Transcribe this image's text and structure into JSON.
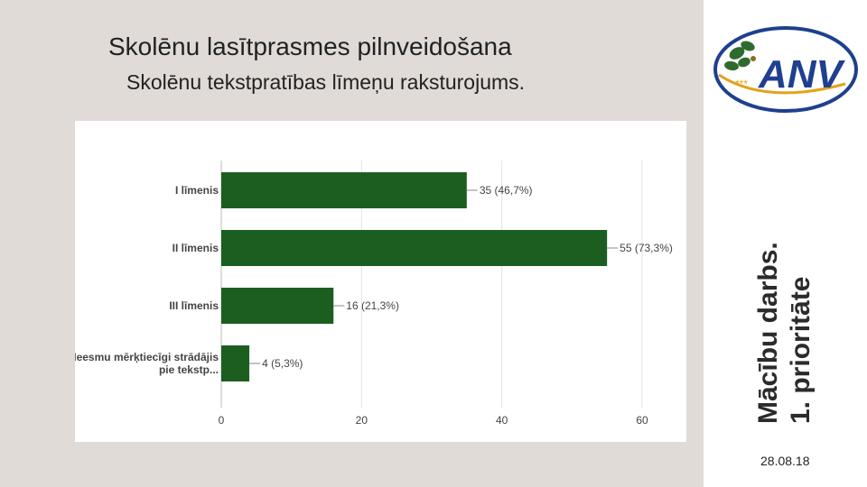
{
  "slide": {
    "title": "Skolēnu lasītprasmes pilnveidošana",
    "subtitle": "Skolēnu tekstpratības līmeņu raksturojums.",
    "side_line1": "Mācību darbs.",
    "side_line2": "1. prioritāte",
    "date": "28.08.18",
    "logo_text": "ANV",
    "logo_stars": "***"
  },
  "colors": {
    "bar": "#1b5e20",
    "panel": "#e0dbd7",
    "logo_blue": "#1f3f8f",
    "logo_gold": "#e3a21a"
  },
  "chart_data": {
    "type": "bar",
    "orientation": "horizontal",
    "categories": [
      "I līmenis",
      "II līmenis",
      "III līmenis",
      "Neesmu mērķtiecīgi strādājis pie tekstp..."
    ],
    "category_lines": [
      [
        "I līmenis"
      ],
      [
        "II līmenis"
      ],
      [
        "III līmenis"
      ],
      [
        "Neesmu mērķtiecīgi strādājis",
        "pie tekstp..."
      ]
    ],
    "values": [
      35,
      55,
      16,
      4
    ],
    "data_labels": [
      "35 (46,7%)",
      "55 (73,3%)",
      "16 (21,3%)",
      "4 (5,3%)"
    ],
    "xlim": [
      0,
      60
    ],
    "xticks": [
      0,
      20,
      40,
      60
    ],
    "grid": true,
    "title": "",
    "xlabel": "",
    "ylabel": ""
  }
}
